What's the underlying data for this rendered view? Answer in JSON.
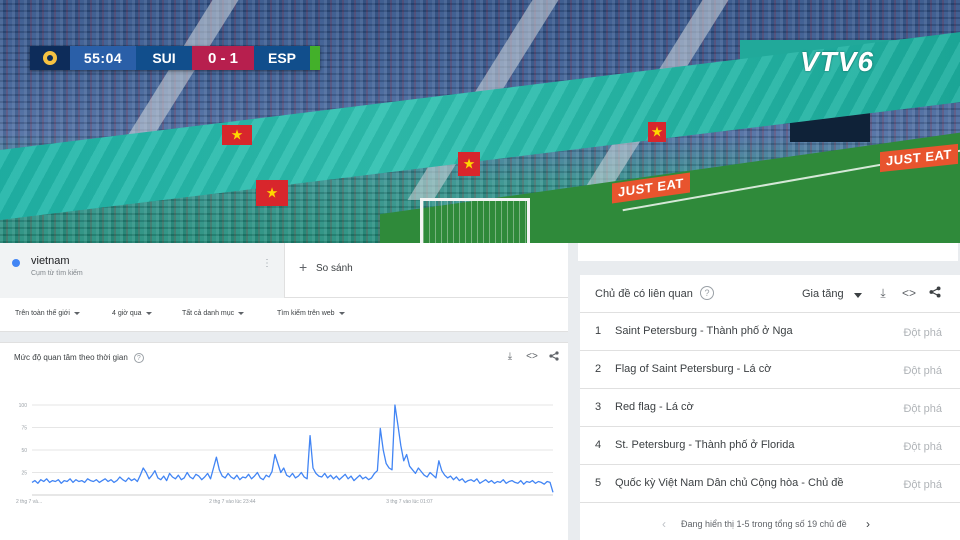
{
  "broadcast": {
    "clock": "55:04",
    "home_team": "SUI",
    "score": "0 - 1",
    "away_team": "ESP",
    "channel_logo": "VTV6",
    "ad_text": "JUST EAT",
    "ad_text_alt": "JUST EAT"
  },
  "search": {
    "term": "vietnam",
    "term_type": "Cụm từ tìm kiếm",
    "compare_label": "So sánh",
    "term_color": "#4285f4"
  },
  "filters": {
    "region": "Trên toàn thế giới",
    "time": "4 giờ qua",
    "category": "Tất cả danh mục",
    "property": "Tìm kiếm trên web"
  },
  "interest_chart": {
    "title": "Mức độ quan tâm theo thời gian",
    "line_color": "#4285f4"
  },
  "chart_data": {
    "type": "line",
    "title": "Mức độ quan tâm theo thời gian",
    "xlabel": "",
    "ylabel": "",
    "ylim": [
      0,
      100
    ],
    "y_ticks": [
      25,
      50,
      75,
      100
    ],
    "x_tick_labels": [
      "2 thg 7 và...",
      "2 thg 7 vào lúc 23:44",
      "3 thg 7 vào lúc 01:07"
    ],
    "grid": true,
    "series": [
      {
        "values": [
          14,
          16,
          13,
          17,
          15,
          18,
          14,
          16,
          15,
          17,
          13,
          16,
          15,
          18,
          14,
          17,
          15,
          16,
          14,
          18,
          16,
          15,
          17,
          14,
          16,
          18,
          15,
          17,
          14,
          16,
          20,
          17,
          15,
          19,
          16,
          18,
          15,
          22,
          30,
          25,
          18,
          22,
          27,
          19,
          17,
          21,
          16,
          24,
          20,
          18,
          22,
          17,
          19,
          25,
          20,
          18,
          23,
          21,
          17,
          20,
          24,
          18,
          30,
          42,
          28,
          21,
          19,
          24,
          20,
          18,
          22,
          17,
          20,
          19,
          23,
          18,
          21,
          25,
          19,
          17,
          22,
          20,
          26,
          45,
          35,
          25,
          30,
          22,
          20,
          24,
          19,
          21,
          25,
          20,
          18,
          66,
          30,
          24,
          21,
          20,
          24,
          19,
          22,
          18,
          21,
          17,
          20,
          23,
          18,
          21,
          16,
          19,
          22,
          18,
          20,
          17,
          19,
          24,
          27,
          74,
          50,
          35,
          30,
          28,
          100,
          78,
          55,
          38,
          45,
          32,
          28,
          24,
          30,
          26,
          22,
          20,
          25,
          22,
          19,
          38,
          27,
          22,
          19,
          21,
          17,
          20,
          16,
          18,
          14,
          16,
          17,
          15,
          18,
          13,
          15,
          17,
          14,
          16,
          13,
          15,
          14,
          17,
          13,
          15,
          16,
          14,
          13,
          16,
          12,
          15,
          14,
          16,
          13,
          15,
          14,
          12,
          15,
          14,
          3
        ]
      }
    ]
  },
  "related": {
    "title": "Chủ đề có liên quan",
    "sort_label": "Gia tăng",
    "items": [
      {
        "num": "1",
        "label": "Saint Petersburg - Thành phố ở Nga",
        "badge": "Đột phá"
      },
      {
        "num": "2",
        "label": "Flag of Saint Petersburg - Lá cờ",
        "badge": "Đột phá"
      },
      {
        "num": "3",
        "label": "Red flag - Lá cờ",
        "badge": "Đột phá"
      },
      {
        "num": "4",
        "label": "St. Petersburg - Thành phố ở Florida",
        "badge": "Đột phá"
      },
      {
        "num": "5",
        "label": "Quốc kỳ Việt Nam Dân chủ Cộng hòa - Chủ đề",
        "badge": "Đột phá"
      }
    ],
    "pager_text": "Đang hiển thị 1-5 trong tổng số 19 chủ đề"
  },
  "icons": {
    "download": "download-icon",
    "embed": "embed-icon",
    "share": "share-icon",
    "help": "help-icon"
  }
}
